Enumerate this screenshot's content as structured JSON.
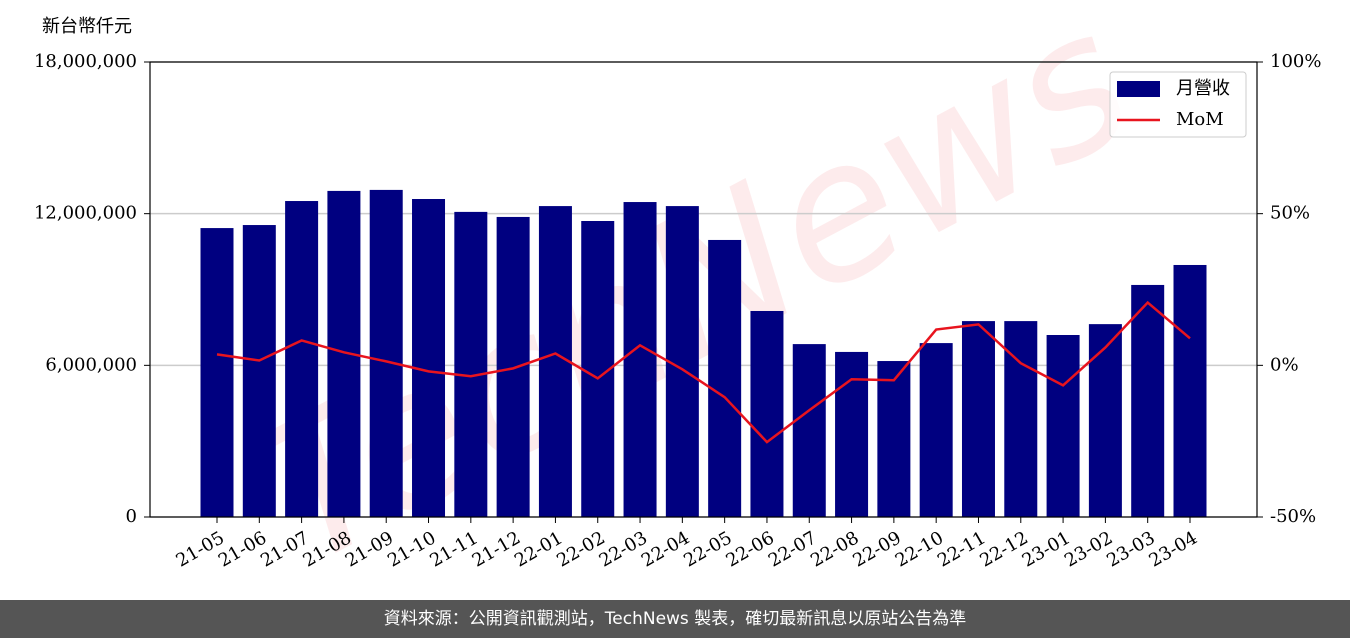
{
  "chart_data": {
    "type": "bar",
    "y_label": "新台幣仟元",
    "watermark": "TechNews",
    "categories": [
      "21-05",
      "21-06",
      "21-07",
      "21-08",
      "21-09",
      "21-10",
      "21-11",
      "21-12",
      "22-01",
      "22-02",
      "22-03",
      "22-04",
      "22-05",
      "22-06",
      "22-07",
      "22-08",
      "22-09",
      "22-10",
      "22-11",
      "22-12",
      "23-01",
      "23-02",
      "23-03",
      "23-04"
    ],
    "series": [
      {
        "name": "月營收",
        "type": "bar",
        "color": "#000080",
        "values": [
          11430000,
          11550000,
          12500000,
          12900000,
          12940000,
          12580000,
          12070000,
          11870000,
          12300000,
          11710000,
          12460000,
          12300000,
          10960000,
          8150000,
          6840000,
          6530000,
          6170000,
          6880000,
          7750000,
          7750000,
          7200000,
          7630000,
          9180000,
          9970000
        ]
      },
      {
        "name": "MoM",
        "type": "line",
        "axis": "y2",
        "color": "#e8141e",
        "values": [
          3.6,
          1.6,
          8.2,
          4.3,
          1.3,
          -2.0,
          -3.6,
          -1.0,
          3.9,
          -4.3,
          6.6,
          -1.3,
          -10.5,
          -25.3,
          -14.8,
          -4.6,
          -4.9,
          11.8,
          13.5,
          0.7,
          -6.6,
          5.9,
          20.7,
          8.9
        ]
      }
    ],
    "ylim": [
      0,
      18000000
    ],
    "yticks": [
      0,
      {
        "value": 6000000,
        "label": "6,000,000"
      },
      {
        "value": 12000000,
        "label": "12,000,000"
      },
      {
        "value": 18000000,
        "label": "18,000,000"
      }
    ],
    "y2lim": [
      -50,
      100
    ],
    "y2ticks": [
      {
        "value": -50,
        "label": "-50%"
      },
      {
        "value": 0,
        "label": "0%"
      },
      {
        "value": 50,
        "label": "50%"
      },
      {
        "value": 100,
        "label": "100%"
      }
    ],
    "grid": true,
    "legend": "upper right"
  },
  "footer": "資料來源：公開資訊觀測站，TechNews 製表，確切最新訊息以原站公告為準"
}
